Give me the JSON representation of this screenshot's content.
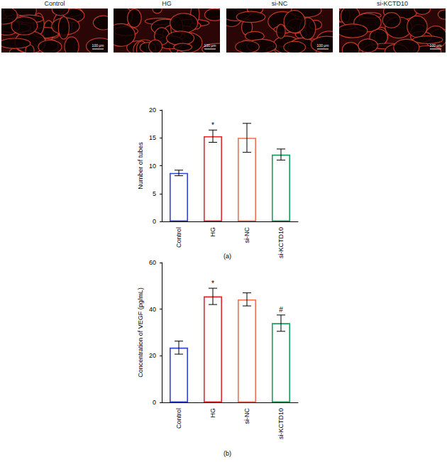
{
  "image_panels": [
    {
      "label": "Control",
      "scale_bar": "100 μm"
    },
    {
      "label": "HG",
      "scale_bar": "100 μm"
    },
    {
      "label": "si-NC",
      "scale_bar": "100 μm"
    },
    {
      "label": "si-KCTD10",
      "scale_bar": "100 μm"
    }
  ],
  "chart_data": [
    {
      "type": "bar",
      "panel_label": "(a)",
      "y_label": "Number of tubes",
      "categories": [
        "Control",
        "HG",
        "si-NC",
        "si-KCTD10"
      ],
      "values": [
        8.7,
        15.3,
        15.0,
        12.0
      ],
      "errors": [
        0.5,
        1.1,
        2.6,
        1.0
      ],
      "colors": [
        "#3344d6",
        "#e8262b",
        "#f2704f",
        "#1a9e5c"
      ],
      "annotations": [
        {
          "category": "HG",
          "text": "*"
        }
      ],
      "ylim": [
        0,
        20
      ],
      "yticks": [
        0,
        5,
        10,
        15,
        20
      ],
      "grid": false
    },
    {
      "type": "bar",
      "panel_label": "(b)",
      "y_label": "Concentration of VEGF (pg/mL)",
      "categories": [
        "Control",
        "HG",
        "si-NC",
        "si-KCTD10"
      ],
      "values": [
        23.5,
        45.5,
        44.2,
        34.0
      ],
      "errors": [
        2.8,
        3.5,
        2.8,
        3.5
      ],
      "colors": [
        "#3344d6",
        "#e8262b",
        "#f2704f",
        "#1a9e5c"
      ],
      "annotations": [
        {
          "category": "HG",
          "text": "*"
        },
        {
          "category": "si-KCTD10",
          "text": "#"
        }
      ],
      "ylim": [
        0,
        60
      ],
      "yticks": [
        0,
        20,
        40,
        60
      ],
      "grid": false
    }
  ]
}
